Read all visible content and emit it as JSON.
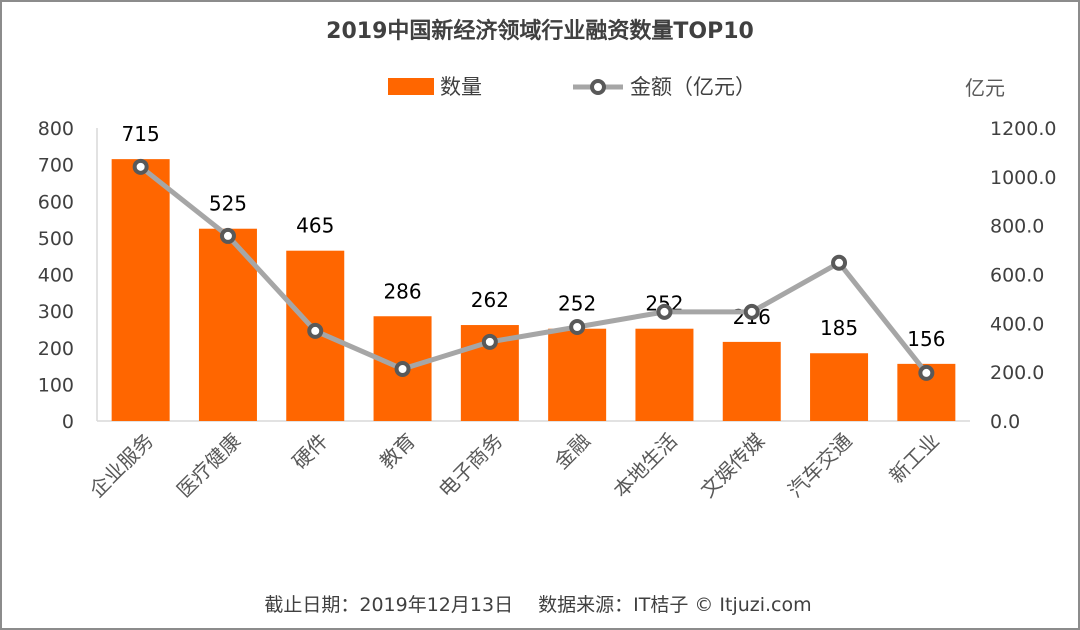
{
  "chart_data": {
    "type": "bar",
    "title": "2019中国新经济领域行业融资数量TOP10",
    "categories": [
      "企业服务",
      "医疗健康",
      "硬件",
      "教育",
      "电子商务",
      "金融",
      "本地生活",
      "文娱传媒",
      "汽车交通",
      "新工业"
    ],
    "series": [
      {
        "name": "数量",
        "type": "bar",
        "axis": "left",
        "color": "#FF6600",
        "values": [
          715,
          525,
          465,
          286,
          262,
          252,
          252,
          216,
          185,
          156
        ],
        "data_labels": [
          "715",
          "525",
          "465",
          "286",
          "262",
          "252",
          "252",
          "216",
          "185",
          "156"
        ]
      },
      {
        "name": "金额（亿元）",
        "type": "line",
        "axis": "right",
        "color": "#A6A6A6",
        "marker_color": "#595959",
        "values": [
          1041,
          758,
          369,
          213,
          324,
          385,
          447,
          447,
          648,
          197
        ]
      }
    ],
    "left_axis": {
      "ylim": [
        0,
        800
      ],
      "ticks": [
        "0",
        "100",
        "200",
        "300",
        "400",
        "500",
        "600",
        "700",
        "800"
      ]
    },
    "right_axis": {
      "ylim": [
        0,
        1200
      ],
      "ticks": [
        "0.0",
        "200.0",
        "400.0",
        "600.0",
        "800.0",
        "1000.0",
        "1200.0"
      ],
      "unit_label": "亿元"
    },
    "legend": {
      "position": "top",
      "entries": [
        "数量",
        "金额（亿元）"
      ]
    },
    "grid": false,
    "xlabel": "",
    "ylabel": "",
    "footer": "截止日期：2019年12月13日　 数据来源：IT桔子 © Itjuzi.com"
  }
}
